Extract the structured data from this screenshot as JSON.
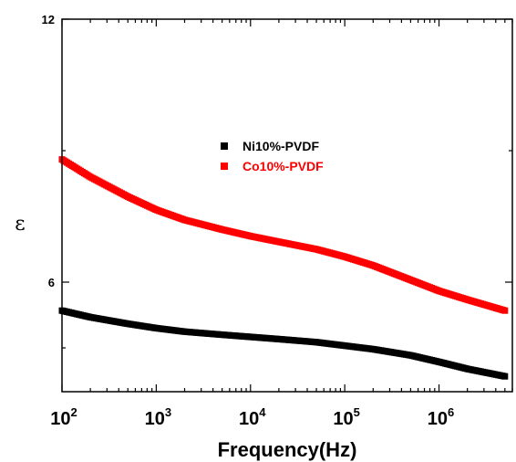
{
  "chart_data": {
    "type": "line",
    "title": "",
    "xlabel": "Frequency(Hz)",
    "ylabel": "ε",
    "x_scale": "log",
    "xlim": [
      100,
      6000000
    ],
    "ylim": [
      3.5,
      12
    ],
    "x_tick_labels": [
      {
        "base": "10",
        "exp": "2",
        "value": 100
      },
      {
        "base": "10",
        "exp": "3",
        "value": 1000
      },
      {
        "base": "10",
        "exp": "4",
        "value": 10000
      },
      {
        "base": "10",
        "exp": "5",
        "value": 100000
      },
      {
        "base": "10",
        "exp": "6",
        "value": 1000000
      }
    ],
    "y_tick_labels": [
      {
        "label": "6",
        "value": 6
      },
      {
        "label": "12",
        "value": 12
      }
    ],
    "grid": false,
    "legend_position": "center",
    "series": [
      {
        "name": "Ni10%-PVDF",
        "color": "#000000",
        "x": [
          100,
          200,
          500,
          1000,
          2000,
          5000,
          10000,
          20000,
          50000,
          100000,
          200000,
          500000,
          1000000,
          2000000,
          5000000
        ],
        "y": [
          5.35,
          5.2,
          5.05,
          4.95,
          4.87,
          4.8,
          4.75,
          4.7,
          4.63,
          4.55,
          4.47,
          4.33,
          4.18,
          4.02,
          3.85
        ]
      },
      {
        "name": "Co10%-PVDF",
        "color": "#ff0000",
        "x": [
          100,
          200,
          500,
          1000,
          2000,
          5000,
          10000,
          20000,
          50000,
          100000,
          200000,
          500000,
          1000000,
          2000000,
          5000000
        ],
        "y": [
          8.8,
          8.4,
          7.95,
          7.65,
          7.42,
          7.2,
          7.05,
          6.92,
          6.75,
          6.58,
          6.38,
          6.05,
          5.8,
          5.6,
          5.35
        ]
      }
    ]
  }
}
